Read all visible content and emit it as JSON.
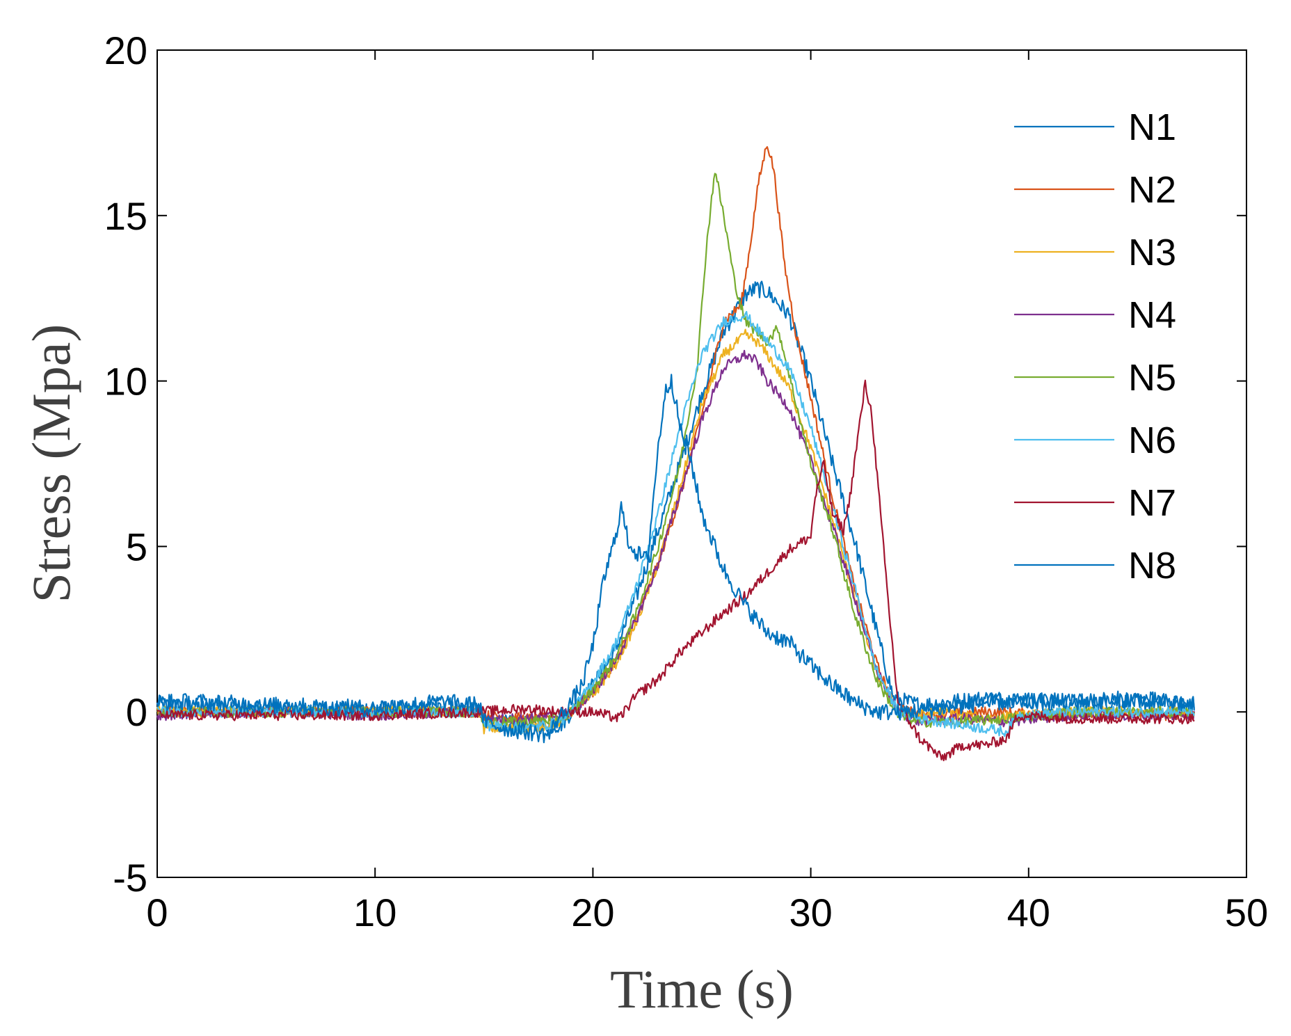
{
  "chart_data": {
    "type": "line",
    "title": "",
    "xlabel": "Time (s)",
    "ylabel": "Stress (Mpa)",
    "xlim": [
      0,
      50
    ],
    "ylim": [
      -5,
      20
    ],
    "xticks": [
      0,
      10,
      20,
      30,
      40,
      50
    ],
    "yticks": [
      -5,
      0,
      5,
      10,
      15,
      20
    ],
    "grid": false,
    "legend_position": "top-right",
    "series": [
      {
        "name": "N1",
        "color": "#0072BD",
        "points": [
          [
            0,
            0.2
          ],
          [
            5,
            0.1
          ],
          [
            10,
            0.1
          ],
          [
            14.8,
            0.1
          ],
          [
            15,
            -0.3
          ],
          [
            17,
            -0.4
          ],
          [
            18.5,
            -0.4
          ],
          [
            19,
            0
          ],
          [
            20,
            0.8
          ],
          [
            21,
            1.8
          ],
          [
            22,
            3.5
          ],
          [
            23,
            5.5
          ],
          [
            24,
            7.5
          ],
          [
            25,
            9.6
          ],
          [
            26,
            11.5
          ],
          [
            27,
            12.6
          ],
          [
            27.5,
            12.8
          ],
          [
            28,
            12.7
          ],
          [
            29,
            12
          ],
          [
            30,
            10
          ],
          [
            31,
            7.5
          ],
          [
            32,
            5.2
          ],
          [
            33,
            2.5
          ],
          [
            33.8,
            0.4
          ],
          [
            35,
            0.2
          ],
          [
            38,
            0.4
          ],
          [
            42,
            0.3
          ],
          [
            45,
            0.3
          ],
          [
            47.6,
            0.2
          ]
        ]
      },
      {
        "name": "N2",
        "color": "#D95319",
        "points": [
          [
            0,
            0
          ],
          [
            5,
            0
          ],
          [
            10,
            0
          ],
          [
            14.8,
            0
          ],
          [
            15,
            -0.1
          ],
          [
            17,
            -0.2
          ],
          [
            18.5,
            -0.2
          ],
          [
            19,
            0
          ],
          [
            20,
            0.6
          ],
          [
            21,
            1.5
          ],
          [
            22,
            2.8
          ],
          [
            23,
            4.5
          ],
          [
            24,
            6.5
          ],
          [
            25,
            9
          ],
          [
            26,
            11.8
          ],
          [
            26.8,
            12.3
          ],
          [
            27.2,
            14
          ],
          [
            27.6,
            16
          ],
          [
            28,
            17.2
          ],
          [
            28.3,
            16.4
          ],
          [
            28.8,
            13.5
          ],
          [
            29.3,
            11.5
          ],
          [
            30,
            9.5
          ],
          [
            31,
            6.5
          ],
          [
            32,
            3.8
          ],
          [
            33,
            1.5
          ],
          [
            33.8,
            0.2
          ],
          [
            35,
            -0.1
          ],
          [
            38,
            0
          ],
          [
            42,
            -0.1
          ],
          [
            47.6,
            -0.1
          ]
        ]
      },
      {
        "name": "N3",
        "color": "#EDB120",
        "points": [
          [
            0,
            0
          ],
          [
            5,
            0
          ],
          [
            10,
            0
          ],
          [
            14.8,
            0
          ],
          [
            15,
            -0.5
          ],
          [
            17,
            -0.5
          ],
          [
            18.5,
            -0.3
          ],
          [
            19,
            0
          ],
          [
            20,
            0.5
          ],
          [
            21,
            1.4
          ],
          [
            22,
            2.7
          ],
          [
            23,
            4.5
          ],
          [
            24,
            6.8
          ],
          [
            25,
            9.3
          ],
          [
            26,
            10.8
          ],
          [
            27,
            11.4
          ],
          [
            27.5,
            11.2
          ],
          [
            28,
            10.8
          ],
          [
            29,
            9.8
          ],
          [
            30,
            8
          ],
          [
            31,
            5.8
          ],
          [
            32,
            3.5
          ],
          [
            33,
            1.2
          ],
          [
            34,
            0
          ],
          [
            35,
            -0.1
          ],
          [
            36,
            0
          ],
          [
            38,
            -0.2
          ],
          [
            40,
            -0.1
          ],
          [
            42,
            0
          ],
          [
            47.6,
            0
          ]
        ]
      },
      {
        "name": "N4",
        "color": "#7E2F8E",
        "points": [
          [
            0,
            -0.1
          ],
          [
            5,
            0
          ],
          [
            10,
            -0.1
          ],
          [
            14.8,
            0
          ],
          [
            15,
            -0.2
          ],
          [
            17,
            -0.2
          ],
          [
            18.5,
            -0.1
          ],
          [
            19,
            0
          ],
          [
            20,
            0.6
          ],
          [
            21,
            1.5
          ],
          [
            22,
            2.8
          ],
          [
            23,
            4.5
          ],
          [
            24,
            6.6
          ],
          [
            25,
            8.8
          ],
          [
            26,
            10.4
          ],
          [
            27,
            10.8
          ],
          [
            27.5,
            10.6
          ],
          [
            28,
            10
          ],
          [
            29,
            9.2
          ],
          [
            30,
            7.6
          ],
          [
            31,
            5.6
          ],
          [
            32,
            3.5
          ],
          [
            33,
            1.3
          ],
          [
            34,
            0
          ],
          [
            35,
            -0.3
          ],
          [
            37,
            -0.2
          ],
          [
            39,
            -0.3
          ],
          [
            42,
            -0.1
          ],
          [
            47.6,
            -0.1
          ]
        ]
      },
      {
        "name": "N5",
        "color": "#77AC30",
        "points": [
          [
            0,
            0
          ],
          [
            5,
            0
          ],
          [
            10,
            0
          ],
          [
            14.8,
            0
          ],
          [
            15,
            -0.3
          ],
          [
            17,
            -0.3
          ],
          [
            18.5,
            -0.2
          ],
          [
            19,
            0
          ],
          [
            20,
            0.7
          ],
          [
            21,
            1.6
          ],
          [
            22,
            3
          ],
          [
            23,
            5
          ],
          [
            24,
            7.5
          ],
          [
            24.8,
            10.5
          ],
          [
            25.2,
            14
          ],
          [
            25.6,
            16.4
          ],
          [
            26,
            15
          ],
          [
            26.5,
            13
          ],
          [
            27,
            11.8
          ],
          [
            28,
            11.2
          ],
          [
            28.5,
            11.6
          ],
          [
            29,
            10.2
          ],
          [
            30,
            7.5
          ],
          [
            31,
            5.5
          ],
          [
            32,
            3
          ],
          [
            33,
            1
          ],
          [
            34,
            -0.1
          ],
          [
            35,
            -0.3
          ],
          [
            37,
            -0.3
          ],
          [
            39,
            -0.2
          ],
          [
            42,
            0
          ],
          [
            47.6,
            0
          ]
        ]
      },
      {
        "name": "N6",
        "color": "#4DBEEE",
        "points": [
          [
            0,
            0
          ],
          [
            5,
            0
          ],
          [
            10,
            0
          ],
          [
            14.8,
            0
          ],
          [
            15,
            -0.4
          ],
          [
            17,
            -0.5
          ],
          [
            18.5,
            -0.3
          ],
          [
            19,
            0
          ],
          [
            20,
            0.9
          ],
          [
            21,
            2
          ],
          [
            22,
            3.8
          ],
          [
            23,
            6
          ],
          [
            24,
            8.6
          ],
          [
            25,
            10.8
          ],
          [
            26,
            11.8
          ],
          [
            27,
            12
          ],
          [
            27.5,
            11.6
          ],
          [
            28,
            11.2
          ],
          [
            29,
            10.4
          ],
          [
            30,
            8.6
          ],
          [
            31,
            6.2
          ],
          [
            32,
            3.8
          ],
          [
            33,
            1.3
          ],
          [
            34,
            0
          ],
          [
            35,
            -0.2
          ],
          [
            37,
            -0.4
          ],
          [
            39,
            -0.6
          ],
          [
            39.5,
            -0.1
          ],
          [
            42,
            0
          ],
          [
            47.6,
            0
          ]
        ]
      },
      {
        "name": "N7",
        "color": "#A2142F",
        "points": [
          [
            0,
            -0.1
          ],
          [
            5,
            -0.1
          ],
          [
            10,
            -0.1
          ],
          [
            14.8,
            0
          ],
          [
            17,
            0.1
          ],
          [
            18.5,
            0
          ],
          [
            20,
            0
          ],
          [
            21.2,
            -0.2
          ],
          [
            22,
            0.5
          ],
          [
            23,
            1
          ],
          [
            24,
            1.8
          ],
          [
            25,
            2.4
          ],
          [
            26,
            3
          ],
          [
            27,
            3.5
          ],
          [
            28,
            4.2
          ],
          [
            29,
            4.9
          ],
          [
            30,
            5.3
          ],
          [
            30.2,
            6.5
          ],
          [
            30.6,
            7.5
          ],
          [
            31,
            6
          ],
          [
            31.5,
            5.5
          ],
          [
            31.8,
            6.5
          ],
          [
            32.2,
            8.5
          ],
          [
            32.5,
            9.9
          ],
          [
            32.8,
            9
          ],
          [
            33.2,
            6
          ],
          [
            33.6,
            3
          ],
          [
            34,
            0.3
          ],
          [
            35,
            -0.8
          ],
          [
            36,
            -1.4
          ],
          [
            37,
            -1
          ],
          [
            38,
            -1
          ],
          [
            39,
            -0.8
          ],
          [
            39.5,
            -0.1
          ],
          [
            42,
            -0.2
          ],
          [
            47.6,
            -0.2
          ]
        ]
      },
      {
        "name": "N8",
        "color": "#0072BD",
        "points": [
          [
            0,
            0.3
          ],
          [
            2,
            0.3
          ],
          [
            5,
            0.2
          ],
          [
            10,
            0.1
          ],
          [
            13,
            0.3
          ],
          [
            14.8,
            0.2
          ],
          [
            15,
            -0.3
          ],
          [
            16,
            -0.5
          ],
          [
            18,
            -0.7
          ],
          [
            18.3,
            -0.3
          ],
          [
            19,
            0.3
          ],
          [
            19.5,
            0.8
          ],
          [
            20,
            2
          ],
          [
            20.5,
            4
          ],
          [
            21,
            5.2
          ],
          [
            21.3,
            6.2
          ],
          [
            21.6,
            5.2
          ],
          [
            22,
            4.8
          ],
          [
            22.5,
            4.6
          ],
          [
            23,
            8
          ],
          [
            23.3,
            9.6
          ],
          [
            23.6,
            10.1
          ],
          [
            24,
            8.6
          ],
          [
            24.5,
            7.6
          ],
          [
            25,
            6
          ],
          [
            26,
            4.3
          ],
          [
            27,
            3.2
          ],
          [
            28,
            2.4
          ],
          [
            29,
            2.1
          ],
          [
            30,
            1.4
          ],
          [
            31,
            0.8
          ],
          [
            32,
            0.3
          ],
          [
            33,
            0
          ],
          [
            34,
            0
          ],
          [
            36,
            0.1
          ],
          [
            38,
            0.3
          ],
          [
            42,
            0.3
          ],
          [
            45,
            0.4
          ],
          [
            47.6,
            0.2
          ]
        ]
      }
    ]
  }
}
